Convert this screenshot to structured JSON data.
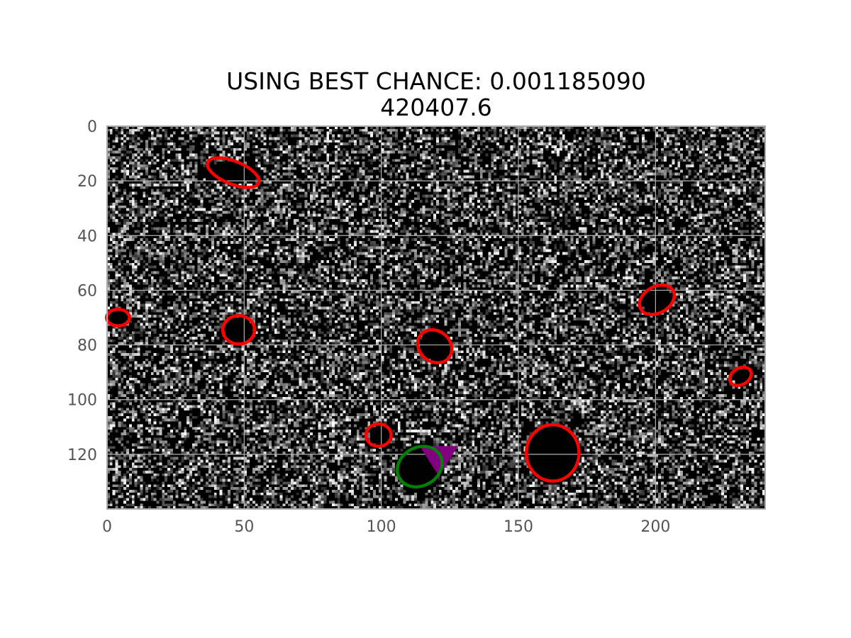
{
  "chart_data": {
    "type": "heatmap",
    "title_lines": [
      "USING BEST CHANCE: 0.001185090",
      "420407.6"
    ],
    "xlabel": "",
    "ylabel": "",
    "xlim": [
      0,
      240
    ],
    "ylim": [
      140,
      0
    ],
    "image_size": {
      "cols": 240,
      "rows": 140
    },
    "colormap": "gray",
    "grid": true,
    "x_ticks": [
      0,
      50,
      100,
      150,
      200
    ],
    "y_ticks": [
      0,
      20,
      40,
      60,
      80,
      100,
      120
    ],
    "dark_blobs": [
      {
        "cx": 45,
        "cy": 17,
        "rx": 11,
        "ry": 4
      },
      {
        "cx": 48,
        "cy": 75,
        "rx": 5,
        "ry": 5
      },
      {
        "cx": 120,
        "cy": 80,
        "rx": 6,
        "ry": 6
      },
      {
        "cx": 100,
        "cy": 113,
        "rx": 4,
        "ry": 4
      },
      {
        "cx": 114,
        "cy": 125,
        "rx": 9,
        "ry": 9
      },
      {
        "cx": 163,
        "cy": 120,
        "rx": 10,
        "ry": 11
      },
      {
        "cx": 200,
        "cy": 63,
        "rx": 6,
        "ry": 5
      },
      {
        "cx": 232,
        "cy": 92,
        "rx": 4,
        "ry": 3
      },
      {
        "cx": 4,
        "cy": 70,
        "rx": 4,
        "ry": 3
      }
    ],
    "red_ellipses": [
      {
        "cx": 46,
        "cy": 17,
        "rx": 10,
        "ry": 4.2,
        "angle": 22
      },
      {
        "cx": 4,
        "cy": 70,
        "rx": 4.2,
        "ry": 3,
        "angle": 0
      },
      {
        "cx": 48,
        "cy": 74.5,
        "rx": 5.8,
        "ry": 5.2,
        "angle": 0
      },
      {
        "cx": 119.5,
        "cy": 80.5,
        "rx": 6.6,
        "ry": 5.6,
        "angle": 40
      },
      {
        "cx": 99,
        "cy": 113,
        "rx": 4.6,
        "ry": 4.1,
        "angle": 0
      },
      {
        "cx": 162.5,
        "cy": 119.5,
        "rx": 9.6,
        "ry": 10.3,
        "angle": 0
      },
      {
        "cx": 200.5,
        "cy": 63.5,
        "rx": 6.8,
        "ry": 4.8,
        "angle": -30
      },
      {
        "cx": 231,
        "cy": 91.5,
        "rx": 4.2,
        "ry": 3,
        "angle": -30
      }
    ],
    "green_ellipses": [
      {
        "cx": 114,
        "cy": 124.5,
        "rx": 8.5,
        "ry": 7,
        "angle": -30
      }
    ],
    "purple_markers": [
      {
        "points": [
          [
            114,
            117
          ],
          [
            128,
            117
          ],
          [
            121,
            128
          ]
        ]
      },
      {
        "points": [
          [
            119,
            121
          ],
          [
            123,
            121
          ],
          [
            121,
            130
          ]
        ]
      }
    ],
    "colors": {
      "red": "#ff0000",
      "green": "#008000",
      "purple": "#800080",
      "grid": "#b0b0b0",
      "frame": "#aaaaaa"
    }
  }
}
